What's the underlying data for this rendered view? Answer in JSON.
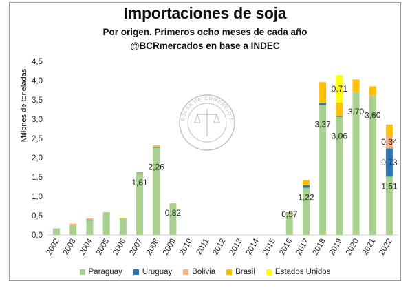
{
  "header": {
    "title": "Importaciones de soja",
    "subtitle": "Por origen. Primeros ocho meses de cada año",
    "source": "@BCRmercados en base a INDEC"
  },
  "watermark": {
    "text": "BOLSA DE COMERCIO DE ROSARIO"
  },
  "chart_data": {
    "type": "bar",
    "stacked": true,
    "ylabel": "Millones de toneladas",
    "ylim": [
      0,
      4.5
    ],
    "yticks": [
      "0,0",
      "0,5",
      "1,0",
      "1,5",
      "2,0",
      "2,5",
      "3,0",
      "3,5",
      "4,0",
      "4,5"
    ],
    "categories": [
      "2002",
      "2003",
      "2004",
      "2005",
      "2006",
      "2007",
      "2008",
      "2009",
      "2010",
      "2011",
      "2012",
      "2013",
      "2014",
      "2015",
      "2016",
      "2017",
      "2018",
      "2019",
      "2020",
      "2021",
      "2022"
    ],
    "series": [
      {
        "name": "Paraguay",
        "color": "#a9d18e",
        "values": [
          0.17,
          0.25,
          0.37,
          0.59,
          0.41,
          1.61,
          2.26,
          0.82,
          0,
          0,
          0,
          0,
          0,
          0,
          0.57,
          1.22,
          3.37,
          3.06,
          3.7,
          3.6,
          1.51
        ]
      },
      {
        "name": "Uruguay",
        "color": "#2e75b6",
        "values": [
          0,
          0,
          0.02,
          0,
          0,
          0.01,
          0.01,
          0,
          0,
          0,
          0,
          0,
          0,
          0,
          0.01,
          0.07,
          0.06,
          0.02,
          0,
          0,
          0.73
        ]
      },
      {
        "name": "Bolivia",
        "color": "#f4b183",
        "values": [
          0,
          0.02,
          0.03,
          0,
          0.02,
          0,
          0.02,
          0,
          0,
          0,
          0,
          0,
          0,
          0,
          0,
          0,
          0,
          0,
          0,
          0.02,
          0.34
        ]
      },
      {
        "name": "Brasil",
        "color": "#ffc000",
        "values": [
          0,
          0.02,
          0.01,
          0,
          0.01,
          0.01,
          0.03,
          0,
          0,
          0,
          0,
          0,
          0,
          0,
          0.01,
          0.13,
          0.53,
          0.35,
          0.33,
          0.23,
          0.28
        ]
      },
      {
        "name": "Estados Unidos",
        "color": "#ffff00",
        "values": [
          0,
          0,
          0,
          0,
          0,
          0,
          0,
          0,
          0,
          0,
          0,
          0,
          0,
          0,
          0,
          0,
          0,
          0.71,
          0,
          0,
          0
        ]
      }
    ],
    "data_labels": [
      {
        "category": "2007",
        "series": "Paraguay",
        "text": "1,61"
      },
      {
        "category": "2008",
        "series": "Paraguay",
        "text": "2,26"
      },
      {
        "category": "2009",
        "series": "Paraguay",
        "text": "0,82"
      },
      {
        "category": "2016",
        "series": "Paraguay",
        "text": "0,57"
      },
      {
        "category": "2017",
        "series": "Paraguay",
        "text": "1,22"
      },
      {
        "category": "2018",
        "series": "Paraguay",
        "text": "3,37"
      },
      {
        "category": "2019",
        "series": "Paraguay",
        "text": "3,06"
      },
      {
        "category": "2019",
        "series": "Estados Unidos",
        "text": "0,71"
      },
      {
        "category": "2020",
        "series": "Paraguay",
        "text": "3,70"
      },
      {
        "category": "2021",
        "series": "Paraguay",
        "text": "3,60"
      },
      {
        "category": "2022",
        "series": "Paraguay",
        "text": "1,51"
      },
      {
        "category": "2022",
        "series": "Uruguay",
        "text": "0,73"
      },
      {
        "category": "2022",
        "series": "Bolivia",
        "text": "0,34"
      }
    ],
    "legend_position": "bottom",
    "grid": false
  }
}
